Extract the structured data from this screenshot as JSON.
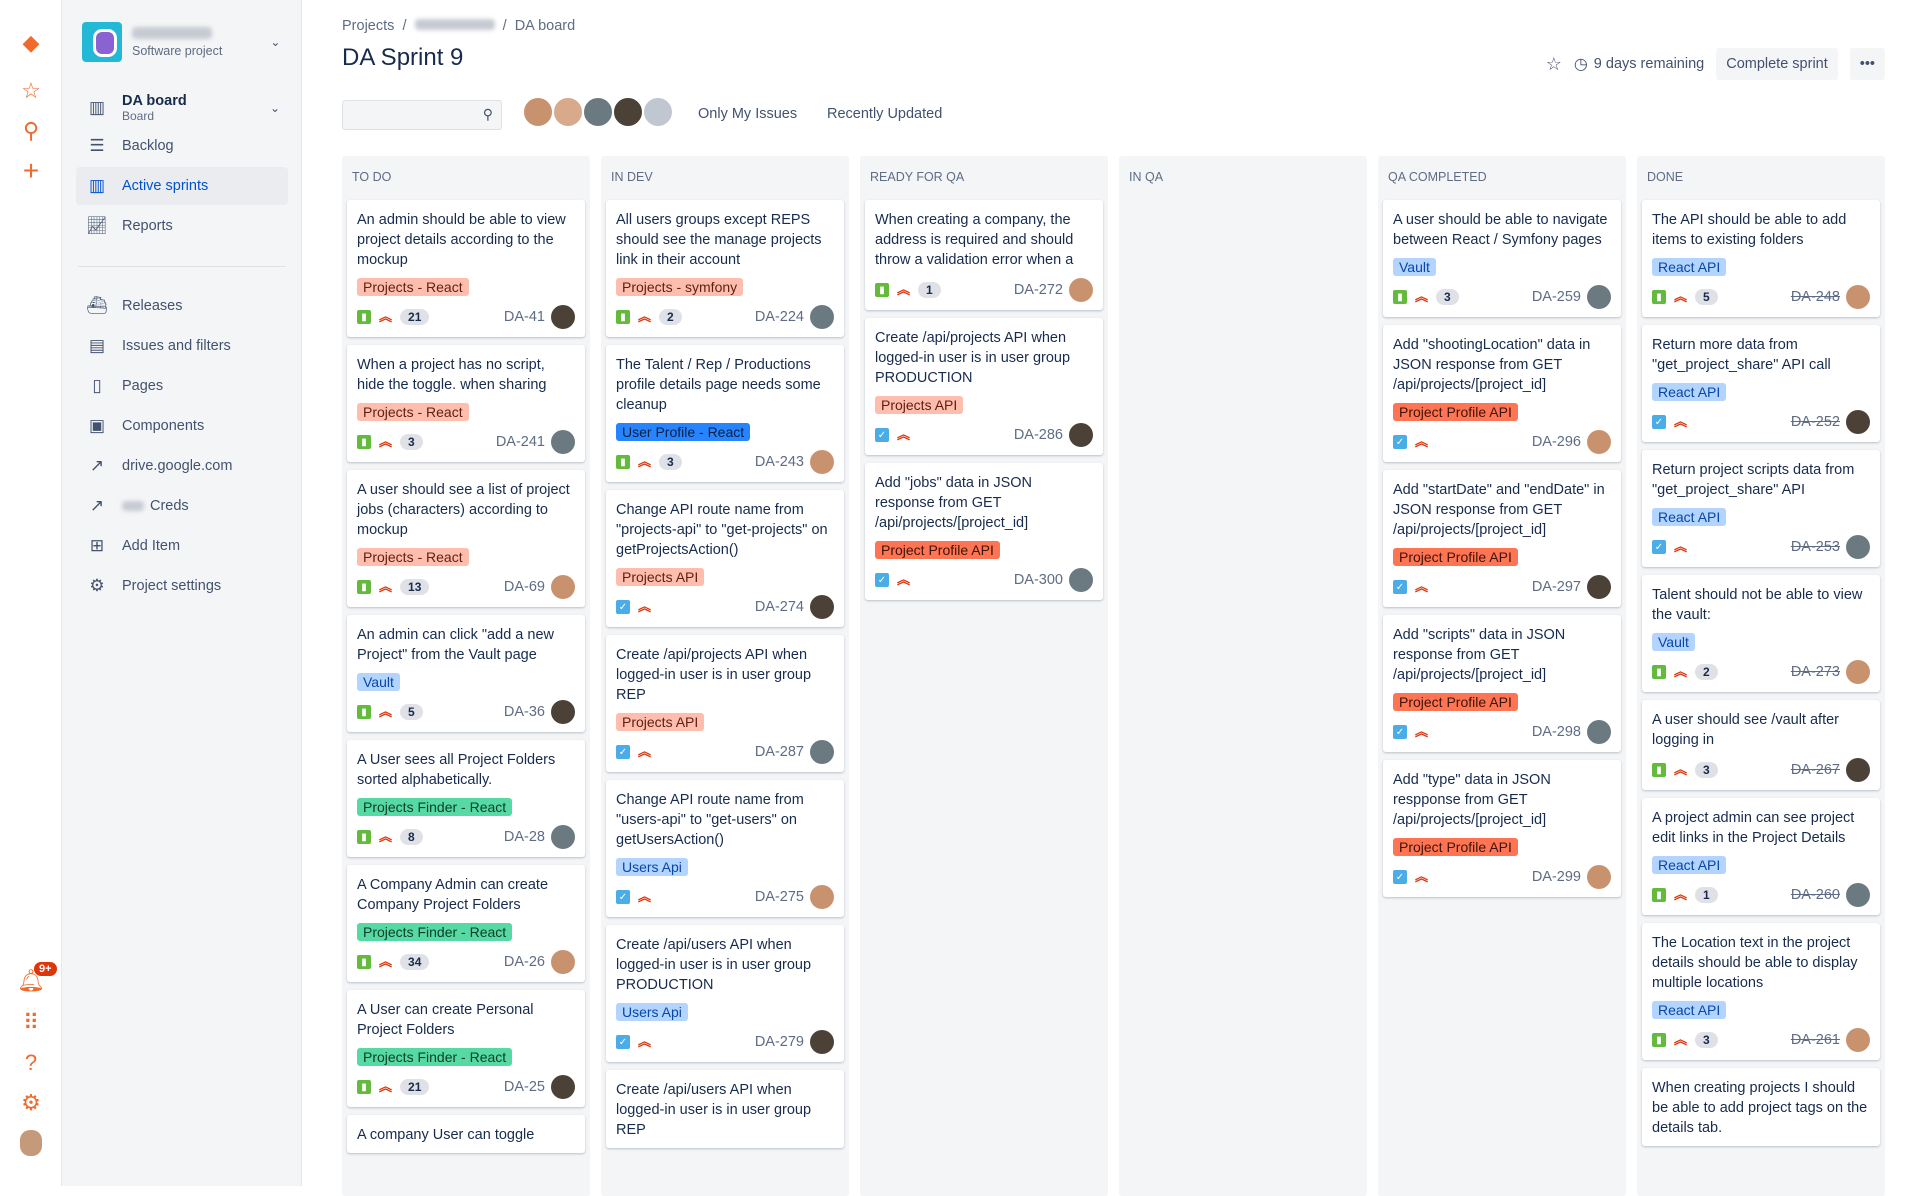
{
  "rail": {
    "notifications_badge": "9+",
    "icons": [
      "jira-logo-icon",
      "star-icon",
      "search-icon",
      "plus-icon",
      "bell-icon",
      "apps-grid-icon",
      "help-icon",
      "gear-icon",
      "user-avatar"
    ]
  },
  "sidebar": {
    "project_type": "Software project",
    "board": {
      "label": "DA board",
      "sub": "Board"
    },
    "items": [
      {
        "label": "Backlog",
        "icon": "backlog-icon"
      },
      {
        "label": "Active sprints",
        "icon": "board-icon",
        "selected": true
      },
      {
        "label": "Reports",
        "icon": "chart-icon"
      }
    ],
    "items2": [
      {
        "label": "Releases",
        "icon": "ship-icon"
      },
      {
        "label": "Issues and filters",
        "icon": "issues-icon"
      },
      {
        "label": "Pages",
        "icon": "page-icon"
      },
      {
        "label": "Components",
        "icon": "component-icon"
      },
      {
        "label": "drive.google.com",
        "icon": "external-link-icon"
      },
      {
        "label": "Creds",
        "icon": "external-link-icon"
      },
      {
        "label": "Add Item",
        "icon": "add-item-icon"
      },
      {
        "label": "Project settings",
        "icon": "gear-icon"
      }
    ]
  },
  "header": {
    "breadcrumb": [
      "Projects",
      "DA board"
    ],
    "title": "DA Sprint 9",
    "remaining": "9 days remaining",
    "complete": "Complete sprint",
    "more": "•••",
    "only_my": "Only My Issues",
    "recent": "Recently Updated"
  },
  "label_colors": {
    "salmon": [
      "#ffbdad",
      "#5d1f12"
    ],
    "orange": [
      "#ff7452",
      "#3d1408"
    ],
    "lightblue": [
      "#b3d4ff",
      "#0747a6"
    ],
    "blue": [
      "#2684ff",
      "#0a1f44"
    ],
    "green": [
      "#57d9a3",
      "#0b3d2a"
    ]
  },
  "type_colors": {
    "story": "#63ba3c",
    "task": "#4bade8"
  },
  "columns": [
    {
      "name": "TO DO",
      "cards": [
        {
          "title": "An admin should be able to view project details according to the mockup",
          "label": "Projects - React",
          "lc": "salmon",
          "type": "story",
          "count": "21",
          "key": "DA-41"
        },
        {
          "title": "When a project has no script, hide the toggle. when sharing",
          "label": "Projects - React",
          "lc": "salmon",
          "type": "story",
          "count": "3",
          "key": "DA-241"
        },
        {
          "title": "A user should see a list of project jobs (characters) according to mockup",
          "label": "Projects - React",
          "lc": "salmon",
          "type": "story",
          "count": "13",
          "key": "DA-69"
        },
        {
          "title": "An admin can click \"add a new Project\" from the Vault page",
          "label": "Vault",
          "lc": "lightblue",
          "type": "story",
          "count": "5",
          "key": "DA-36"
        },
        {
          "title": "A User sees all Project Folders sorted alphabetically.",
          "label": "Projects Finder - React",
          "lc": "green",
          "type": "story",
          "count": "8",
          "key": "DA-28"
        },
        {
          "title": "A Company Admin can create Company Project Folders",
          "label": "Projects Finder - React",
          "lc": "green",
          "type": "story",
          "count": "34",
          "key": "DA-26"
        },
        {
          "title": "A User can create Personal Project Folders",
          "label": "Projects Finder - React",
          "lc": "green",
          "type": "story",
          "count": "21",
          "key": "DA-25"
        },
        {
          "title": "A company User can toggle"
        }
      ]
    },
    {
      "name": "IN DEV",
      "cards": [
        {
          "title": "All users groups except REPS should see the manage projects link in their account",
          "label": "Projects - symfony",
          "lc": "salmon",
          "type": "story",
          "count": "2",
          "key": "DA-224"
        },
        {
          "title": "The Talent / Rep / Productions profile details page needs some cleanup",
          "label": "User Profile - React",
          "lc": "blue",
          "type": "story",
          "count": "3",
          "key": "DA-243"
        },
        {
          "title": "Change API route name from \"projects-api\" to \"get-projects\" on getProjectsAction()",
          "label": "Projects API",
          "lc": "salmon",
          "type": "task",
          "key": "DA-274"
        },
        {
          "title": "Create /api/projects API when logged-in user is in user group REP",
          "label": "Projects API",
          "lc": "salmon",
          "type": "task",
          "key": "DA-287"
        },
        {
          "title": "Change API route name from \"users-api\" to \"get-users\" on getUsersAction()",
          "label": "Users Api",
          "lc": "lightblue",
          "type": "task",
          "key": "DA-275"
        },
        {
          "title": "Create /api/users API when logged-in user is in user group PRODUCTION",
          "label": "Users Api",
          "lc": "lightblue",
          "type": "task",
          "key": "DA-279"
        },
        {
          "title": "Create /api/users API when logged-in user is in user group REP"
        }
      ]
    },
    {
      "name": "READY FOR QA",
      "cards": [
        {
          "title": "When creating a company, the address is required and should throw a validation error when a",
          "type": "story",
          "count": "1",
          "key": "DA-272"
        },
        {
          "title": "Create /api/projects API when logged-in user is in user group PRODUCTION",
          "label": "Projects API",
          "lc": "salmon",
          "type": "task",
          "key": "DA-286"
        },
        {
          "title": "Add \"jobs\" data in JSON response from GET /api/projects/[project_id]",
          "label": "Project Profile API",
          "lc": "orange",
          "type": "task",
          "key": "DA-300"
        }
      ]
    },
    {
      "name": "IN QA",
      "cards": []
    },
    {
      "name": "QA COMPLETED",
      "cards": [
        {
          "title": "A user should be able to navigate between React / Symfony pages",
          "label": "Vault",
          "lc": "lightblue",
          "type": "story",
          "count": "3",
          "key": "DA-259"
        },
        {
          "title": "Add \"shootingLocation\" data in JSON response from GET /api/projects/[project_id]",
          "label": "Project Profile API",
          "lc": "orange",
          "type": "task",
          "key": "DA-296"
        },
        {
          "title": "Add \"startDate\" and \"endDate\" in JSON response from GET /api/projects/[project_id]",
          "label": "Project Profile API",
          "lc": "orange",
          "type": "task",
          "key": "DA-297"
        },
        {
          "title": "Add \"scripts\" data in JSON response from GET /api/projects/[project_id]",
          "label": "Project Profile API",
          "lc": "orange",
          "type": "task",
          "key": "DA-298"
        },
        {
          "title": "Add \"type\" data in JSON respponse from GET /api/projects/[project_id]",
          "label": "Project Profile API",
          "lc": "orange",
          "type": "task",
          "key": "DA-299"
        }
      ]
    },
    {
      "name": "DONE",
      "done": true,
      "cards": [
        {
          "title": "The API should be able to add items to existing folders",
          "label": "React API",
          "lc": "lightblue",
          "type": "story",
          "count": "5",
          "key": "DA-248"
        },
        {
          "title": "Return more data from \"get_project_share\" API call",
          "label": "React API",
          "lc": "lightblue",
          "type": "task",
          "key": "DA-252"
        },
        {
          "title": "Return project scripts data from \"get_project_share\" API",
          "label": "React API",
          "lc": "lightblue",
          "type": "task",
          "key": "DA-253"
        },
        {
          "title": "Talent should not be able to view the vault:",
          "label": "Vault",
          "lc": "lightblue",
          "type": "story",
          "count": "2",
          "key": "DA-273"
        },
        {
          "title": "A user should see /vault after logging in",
          "type": "story",
          "count": "3",
          "key": "DA-267"
        },
        {
          "title": "A project admin can see project edit links in the Project Details",
          "label": "React API",
          "lc": "lightblue",
          "type": "story",
          "count": "1",
          "key": "DA-260"
        },
        {
          "title": "The Location text in the project details should be able to display multiple locations",
          "label": "React API",
          "lc": "lightblue",
          "type": "story",
          "count": "3",
          "key": "DA-261"
        },
        {
          "title": "When creating projects I should be able to add project tags on the details tab."
        }
      ]
    }
  ]
}
